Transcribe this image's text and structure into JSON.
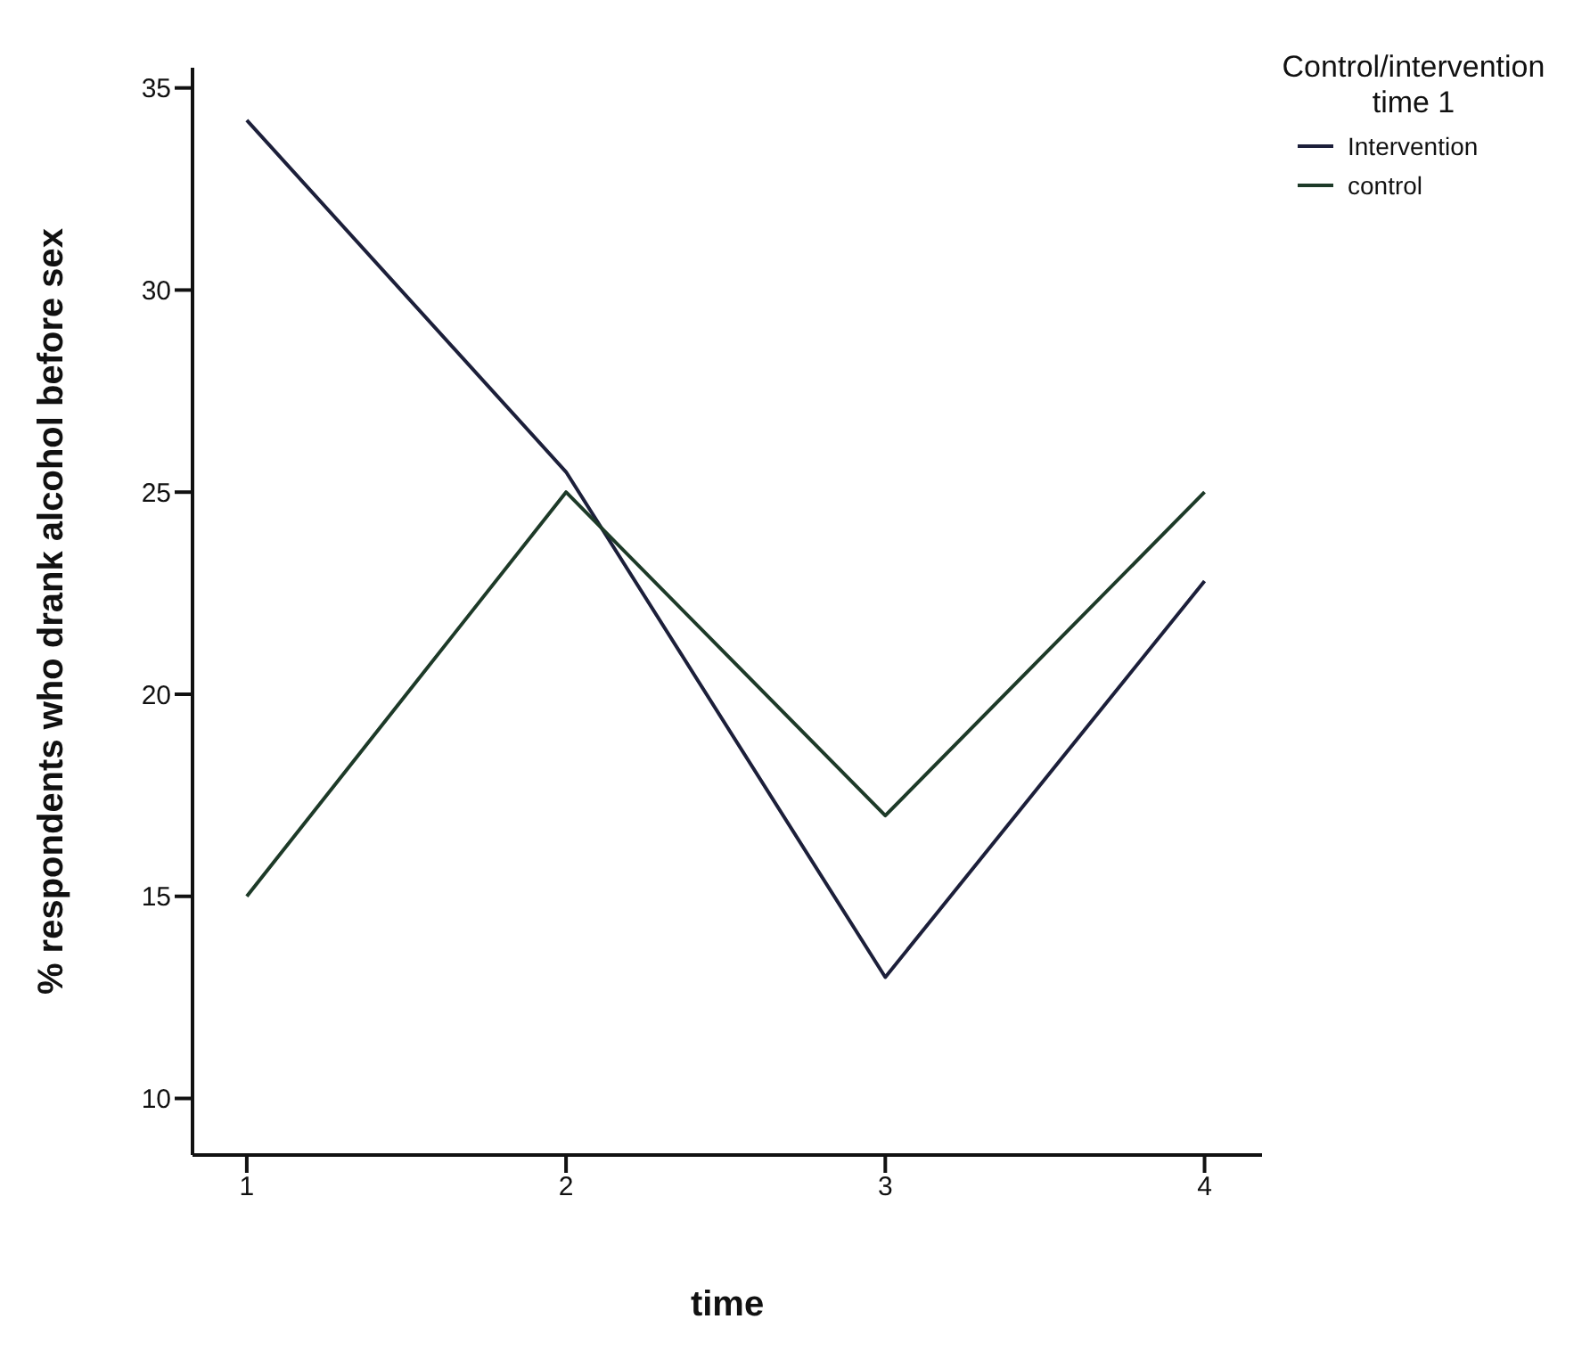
{
  "chart_data": {
    "type": "line",
    "xlabel": "time",
    "ylabel": "% respondents who drank alcohol before sex",
    "legend_title": "Control/intervention time 1",
    "x": [
      1,
      2,
      3,
      4
    ],
    "xlim": [
      0.83,
      4.18
    ],
    "xticks": [
      1,
      2,
      3,
      4
    ],
    "ylim": [
      8.6,
      35.5
    ],
    "yticks": [
      10,
      15,
      20,
      25,
      30,
      35
    ],
    "grid": false,
    "legend": "top right",
    "marker": "none",
    "line_style": "solid",
    "series": [
      {
        "name": "Intervention",
        "color": "#1c1f3a",
        "values": [
          34.2,
          25.5,
          13.0,
          22.8
        ]
      },
      {
        "name": "control",
        "color": "#1d3a28",
        "values": [
          15.0,
          25.0,
          17.0,
          25.0
        ]
      }
    ]
  }
}
